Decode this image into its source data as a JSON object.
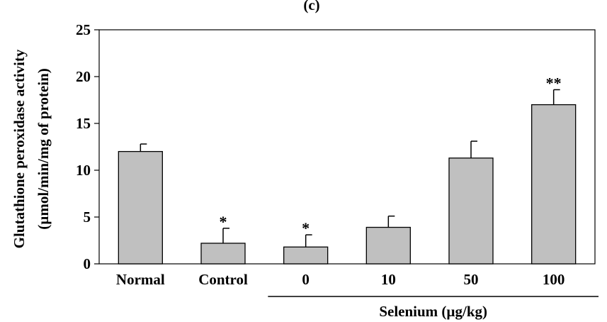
{
  "chart_data": {
    "type": "bar",
    "panel_label": "(c)",
    "ylabel_lines": [
      "Glutathione peroxidase activity",
      "(µmol/min/mg of protein)"
    ],
    "categories": [
      "Normal",
      "Control",
      "0",
      "10",
      "50",
      "100"
    ],
    "values": [
      12.0,
      2.2,
      1.8,
      3.9,
      11.3,
      17.0
    ],
    "errors": [
      0.8,
      1.6,
      1.3,
      1.2,
      1.8,
      1.6
    ],
    "significance": [
      "",
      "*",
      "*",
      "",
      "",
      "**"
    ],
    "ylim": [
      0,
      25
    ],
    "yticks": [
      0,
      5,
      10,
      15,
      20,
      25
    ],
    "group": {
      "label": "Selenium (µg/kg)",
      "from_index": 2,
      "to_index": 5
    },
    "bar_color": "#c0c0c0",
    "grid": false
  }
}
